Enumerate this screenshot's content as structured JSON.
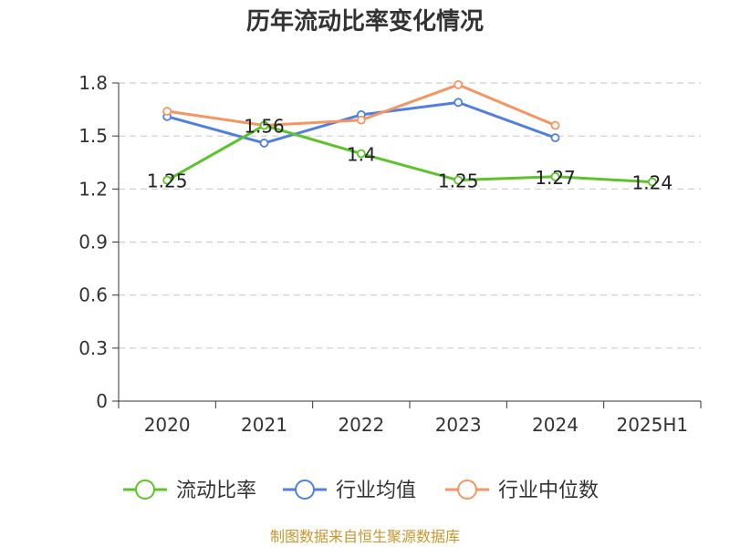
{
  "chart_data": {
    "type": "line",
    "title": "历年流动比率变化情况",
    "categories": [
      "2020",
      "2021",
      "2022",
      "2023",
      "2024",
      "2025H1"
    ],
    "y_ticks": [
      "0",
      "0.3",
      "0.6",
      "0.9",
      "1.2",
      "1.5",
      "1.8"
    ],
    "ylim": [
      0,
      1.8
    ],
    "grid": "horizontal-dashed",
    "legend_position": "bottom",
    "series": [
      {
        "name": "流动比率",
        "color": "#5cc32b",
        "values": [
          1.25,
          1.56,
          1.4,
          1.25,
          1.27,
          1.24
        ],
        "labels": [
          "1.25",
          "1.56",
          "1.4",
          "1.25",
          "1.27",
          "1.24"
        ]
      },
      {
        "name": "行业均值",
        "color": "#4f80e0",
        "values": [
          1.61,
          1.46,
          1.62,
          1.69,
          1.49,
          null
        ]
      },
      {
        "name": "行业中位数",
        "color": "#f59561",
        "values": [
          1.64,
          1.56,
          1.59,
          1.79,
          1.56,
          null
        ]
      }
    ]
  },
  "footer": {
    "source": "制图数据来自恒生聚源数据库"
  }
}
